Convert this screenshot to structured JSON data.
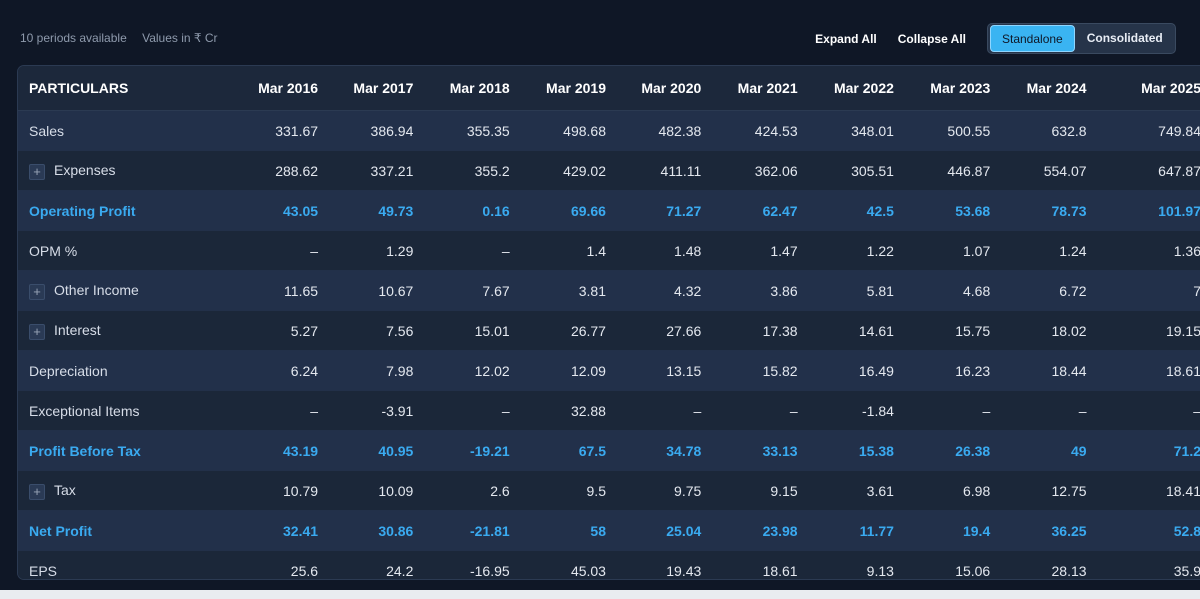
{
  "header": {
    "periods_text": "10 periods available",
    "values_text": "Values in ₹ Cr",
    "expand_all": "Expand All",
    "collapse_all": "Collapse All",
    "toggle": {
      "standalone": "Standalone",
      "consolidated": "Consolidated",
      "active": "Standalone"
    }
  },
  "table": {
    "columns": [
      "PARTICULARS",
      "Mar 2016",
      "Mar 2017",
      "Mar 2018",
      "Mar 2019",
      "Mar 2020",
      "Mar 2021",
      "Mar 2022",
      "Mar 2023",
      "Mar 2024",
      "Mar 2025"
    ],
    "rows": [
      {
        "label": "Sales",
        "expandable": false,
        "highlight": false,
        "values": [
          "331.67",
          "386.94",
          "355.35",
          "498.68",
          "482.38",
          "424.53",
          "348.01",
          "500.55",
          "632.8",
          "749.84"
        ]
      },
      {
        "label": "Expenses",
        "expandable": true,
        "highlight": false,
        "values": [
          "288.62",
          "337.21",
          "355.2",
          "429.02",
          "411.11",
          "362.06",
          "305.51",
          "446.87",
          "554.07",
          "647.87"
        ]
      },
      {
        "label": "Operating Profit",
        "expandable": false,
        "highlight": true,
        "values": [
          "43.05",
          "49.73",
          "0.16",
          "69.66",
          "71.27",
          "62.47",
          "42.5",
          "53.68",
          "78.73",
          "101.97"
        ]
      },
      {
        "label": "OPM %",
        "expandable": false,
        "highlight": false,
        "values": [
          "–",
          "1.29",
          "–",
          "1.4",
          "1.48",
          "1.47",
          "1.22",
          "1.07",
          "1.24",
          "1.36"
        ]
      },
      {
        "label": "Other Income",
        "expandable": true,
        "highlight": false,
        "values": [
          "11.65",
          "10.67",
          "7.67",
          "3.81",
          "4.32",
          "3.86",
          "5.81",
          "4.68",
          "6.72",
          "7"
        ]
      },
      {
        "label": "Interest",
        "expandable": true,
        "highlight": false,
        "values": [
          "5.27",
          "7.56",
          "15.01",
          "26.77",
          "27.66",
          "17.38",
          "14.61",
          "15.75",
          "18.02",
          "19.15"
        ]
      },
      {
        "label": "Depreciation",
        "expandable": false,
        "highlight": false,
        "values": [
          "6.24",
          "7.98",
          "12.02",
          "12.09",
          "13.15",
          "15.82",
          "16.49",
          "16.23",
          "18.44",
          "18.61"
        ]
      },
      {
        "label": "Exceptional Items",
        "expandable": false,
        "highlight": false,
        "values": [
          "–",
          "-3.91",
          "–",
          "32.88",
          "–",
          "–",
          "-1.84",
          "–",
          "–",
          "–"
        ]
      },
      {
        "label": "Profit Before Tax",
        "expandable": false,
        "highlight": true,
        "values": [
          "43.19",
          "40.95",
          "-19.21",
          "67.5",
          "34.78",
          "33.13",
          "15.38",
          "26.38",
          "49",
          "71.2"
        ]
      },
      {
        "label": "Tax",
        "expandable": true,
        "highlight": false,
        "values": [
          "10.79",
          "10.09",
          "2.6",
          "9.5",
          "9.75",
          "9.15",
          "3.61",
          "6.98",
          "12.75",
          "18.41"
        ]
      },
      {
        "label": "Net Profit",
        "expandable": false,
        "highlight": true,
        "values": [
          "32.41",
          "30.86",
          "-21.81",
          "58",
          "25.04",
          "23.98",
          "11.77",
          "19.4",
          "36.25",
          "52.8"
        ]
      },
      {
        "label": "EPS",
        "expandable": false,
        "highlight": false,
        "values": [
          "25.6",
          "24.2",
          "-16.95",
          "45.03",
          "19.43",
          "18.61",
          "9.13",
          "15.06",
          "28.13",
          "35.9"
        ]
      }
    ],
    "expand_icon": "plus-icon"
  },
  "colors": {
    "background": "#0f1726",
    "accent": "#3ab4f2",
    "highlight_text": "#3aaaf0"
  }
}
